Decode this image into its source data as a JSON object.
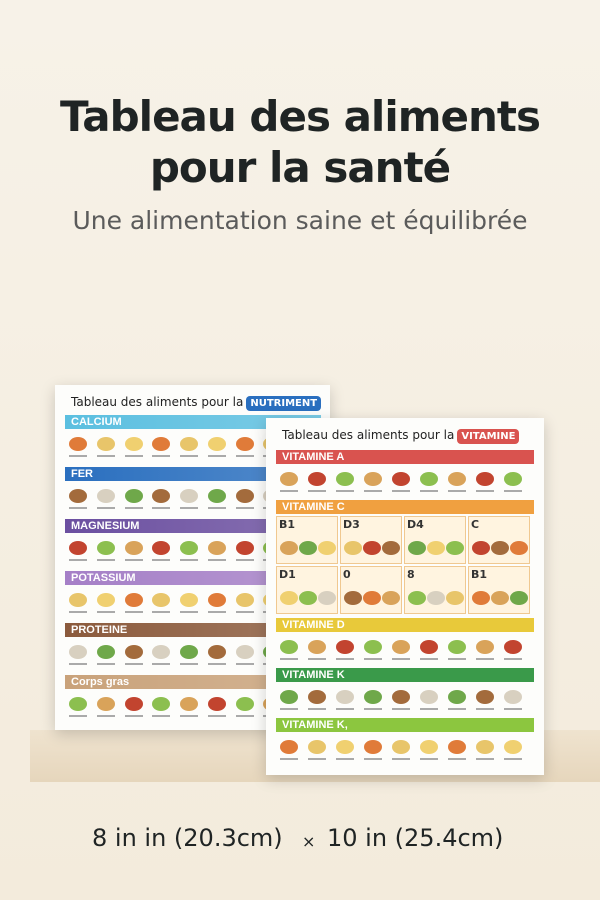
{
  "header": {
    "title_lines": [
      "Tableau des aliments",
      "pour la santé"
    ],
    "subtitle": "Une alimentation saine et équilibrée"
  },
  "posters": [
    {
      "title": "Tableau des aliments pour la",
      "badge": "NUTRIMENT",
      "sections": [
        "CALCIUM",
        "FER",
        "MAGNESIUM",
        "POTASSIUM",
        "PROTEINE",
        "Corps gras"
      ]
    },
    {
      "title": "Tableau des aliments pour la",
      "badge": "VITAMINE",
      "sections": [
        "VITAMINE A",
        "VITAMINE C",
        "VITAMINE D",
        "VITAMINE K",
        "VITAMINE K,"
      ],
      "subgroups": [
        "B1",
        "D3",
        "D4",
        "C",
        "D1",
        "0",
        "8",
        "B1"
      ]
    }
  ],
  "footer": {
    "width": "8 in in (20.3cm)",
    "separator": "×",
    "height": "10 in (25.4cm)"
  }
}
